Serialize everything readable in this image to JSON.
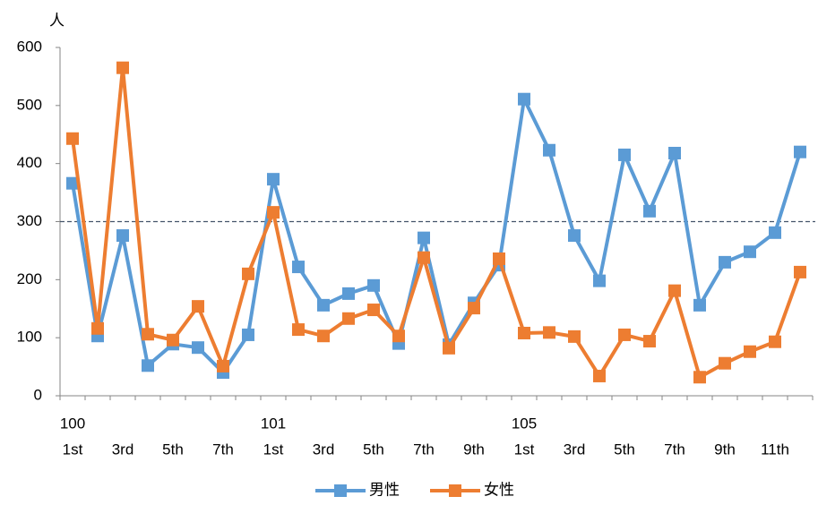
{
  "chart_data": {
    "type": "line",
    "y_axis_label": "人",
    "categories": [
      "1st",
      null,
      "3rd",
      null,
      "5th",
      null,
      "7th",
      null,
      "1st",
      null,
      "3rd",
      null,
      "5th",
      null,
      "7th",
      null,
      "9th",
      null,
      "1st",
      null,
      "3rd",
      null,
      "5th",
      null,
      "7th",
      null,
      "9th",
      null,
      "11th",
      null
    ],
    "groups": [
      "100",
      null,
      null,
      null,
      null,
      null,
      null,
      null,
      "101",
      null,
      null,
      null,
      null,
      null,
      null,
      null,
      null,
      null,
      "105",
      null,
      null,
      null,
      null,
      null,
      null,
      null,
      null,
      null,
      null,
      null
    ],
    "series": [
      {
        "name": "男性",
        "color": "#5b9bd5",
        "values": [
          366,
          103,
          276,
          52,
          89,
          83,
          40,
          105,
          373,
          222,
          156,
          176,
          190,
          90,
          272,
          88,
          160,
          225,
          511,
          423,
          276,
          198,
          415,
          318,
          418,
          156,
          230,
          248,
          281,
          420
        ]
      },
      {
        "name": "女性",
        "color": "#ed7d31",
        "values": [
          443,
          116,
          565,
          106,
          96,
          154,
          51,
          210,
          316,
          114,
          103,
          133,
          148,
          103,
          238,
          82,
          151,
          236,
          108,
          109,
          102,
          34,
          105,
          94,
          181,
          32,
          56,
          76,
          93,
          213
        ]
      }
    ],
    "reference_line": 300,
    "ylim": [
      0,
      600
    ],
    "yticks": [
      0,
      100,
      200,
      300,
      400,
      500,
      600
    ],
    "legend": "bottom"
  }
}
